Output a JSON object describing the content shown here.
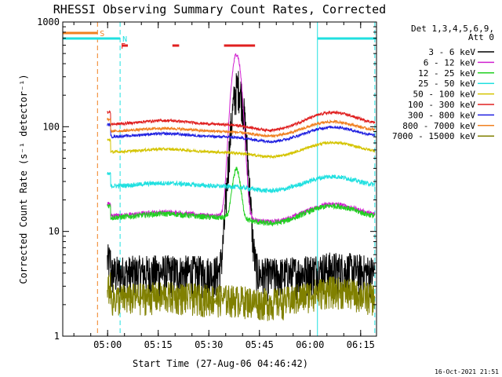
{
  "chart_data": {
    "type": "line",
    "title": "RHESSI Observing Summary Count Rates, Corrected",
    "xlabel": "Start Time (27-Aug-06 04:46:42)",
    "ylabel": "Corrected Count Rate (s⁻¹ detector⁻¹)",
    "y_scale": "log",
    "ylim": [
      1,
      1000
    ],
    "xlim_minutes": [
      0,
      93
    ],
    "x_tick_labels": [
      "05:00",
      "05:15",
      "05:30",
      "05:45",
      "06:00",
      "06:15"
    ],
    "x_tick_minutes": [
      13.3,
      28.3,
      43.3,
      58.3,
      73.3,
      88.3
    ],
    "y_tick_labels": [
      "1",
      "10",
      "100",
      "1000"
    ],
    "y_tick_values": [
      1,
      10,
      100,
      1000
    ],
    "grid": false,
    "legend": {
      "placement": "right",
      "header1": "Det 1,3,4,5,6,9,",
      "header2": "Att 0"
    },
    "series": [
      {
        "name": "3 - 6 keV",
        "color": "#000000",
        "base": 4,
        "peak": 240,
        "peak_minute": 52,
        "peak_width": 2.2,
        "hump": 0.05,
        "noise": 0.45
      },
      {
        "name": "6 - 12 keV",
        "color": "#d020d0",
        "base": 14,
        "peak": 480,
        "peak_minute": 51.5,
        "peak_width": 1.8,
        "hump": 0.15,
        "noise": 0.05
      },
      {
        "name": "12 - 25 keV",
        "color": "#20d020",
        "base": 13.5,
        "peak": 26,
        "peak_minute": 51.5,
        "peak_width": 1.5,
        "hump": 0.15,
        "noise": 0.06
      },
      {
        "name": "25 - 50 keV",
        "color": "#20e0e0",
        "base": 27,
        "peak": 0,
        "peak_minute": 51.5,
        "peak_width": 1.5,
        "hump": 0.12,
        "noise": 0.05
      },
      {
        "name": "50 - 100 keV",
        "color": "#d4c400",
        "base": 57,
        "peak": 0,
        "peak_minute": 51.5,
        "peak_width": 1.5,
        "hump": 0.12,
        "noise": 0.03
      },
      {
        "name": "100 - 300 keV",
        "color": "#e02020",
        "base": 105,
        "peak": 0,
        "peak_minute": 51.5,
        "peak_width": 1.5,
        "hump": 0.15,
        "noise": 0.03
      },
      {
        "name": "300 - 800 keV",
        "color": "#2020e0",
        "base": 80,
        "peak": 0,
        "peak_minute": 51.5,
        "peak_width": 1.5,
        "hump": 0.12,
        "noise": 0.03
      },
      {
        "name": "800 - 7000 keV",
        "color": "#f08020",
        "base": 90,
        "peak": 0,
        "peak_minute": 51.5,
        "peak_width": 1.5,
        "hump": 0.12,
        "noise": 0.03
      },
      {
        "name": "7000 - 15000 keV",
        "color": "#808000",
        "base": 2.3,
        "peak": 0,
        "peak_minute": 51.5,
        "peak_width": 1.5,
        "hump": 0.1,
        "noise": 0.35
      }
    ],
    "data_start_minute": 13.2,
    "data_end_minute": 92.5,
    "flags": [
      {
        "label": "S",
        "color": "#f08020",
        "level": "top",
        "segments": [
          [
            0,
            10.3
          ]
        ],
        "marker_minute": 10.3
      },
      {
        "label": "N",
        "color": "#20e0e0",
        "level": "second",
        "segments": [
          [
            0,
            17
          ],
          [
            75.5,
            93
          ]
        ],
        "marker_minute": 17
      },
      {
        "label": "F",
        "color": "#e02020",
        "level": "third",
        "segments": [
          [
            17.5,
            19.3
          ],
          [
            32.5,
            34.5
          ],
          [
            47.8,
            57
          ]
        ],
        "marker_minute": 16.5
      }
    ],
    "vertical_lines": [
      {
        "minute": 10.3,
        "color": "#f08020",
        "style": "dashed"
      },
      {
        "minute": 17,
        "color": "#20e0e0",
        "style": "dashed"
      },
      {
        "minute": 75.5,
        "color": "#20e0e0",
        "style": "solid"
      },
      {
        "minute": 92.5,
        "color": "#20e0e0",
        "style": "dashed"
      },
      {
        "minute": 0,
        "color": "#20e0e0",
        "style": "solid"
      }
    ]
  },
  "footer": {
    "timestamp": "16-Oct-2021 21:51"
  }
}
